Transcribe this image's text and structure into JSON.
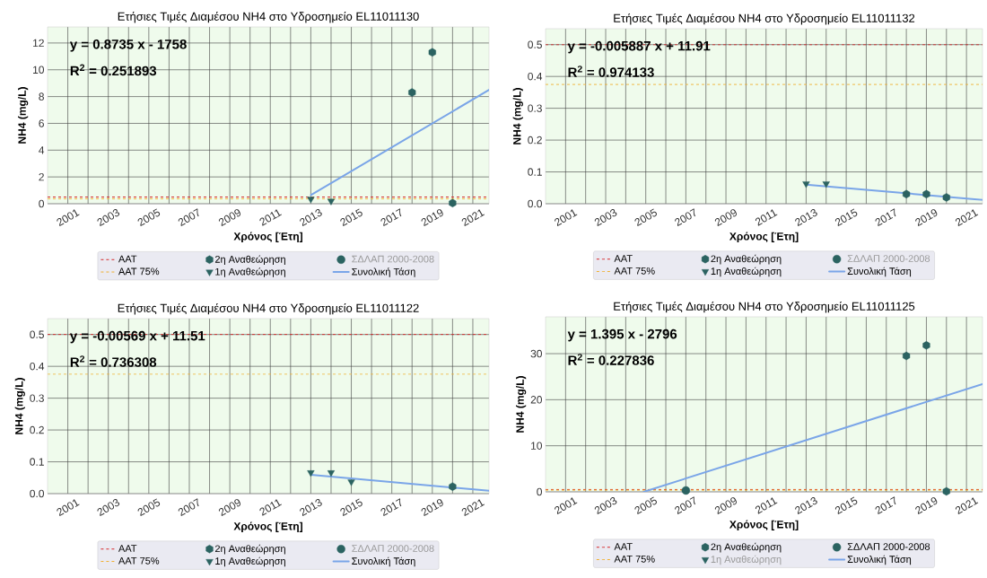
{
  "chart_data": [
    {
      "type": "scatter",
      "title": "Ετήσιες Τιμές Διαμέσου NH4 στο Υδροσημείο EL11011130",
      "xlabel": "Χρόνος [Έτη]",
      "ylabel": "NH4 (mg/L)",
      "xlim": [
        2000,
        2021.8
      ],
      "ylim": [
        0,
        13.2
      ],
      "xticks": [
        2001,
        {
          "value": 2002,
          "label": null
        },
        2003,
        {
          "value": 2004,
          "label": null
        },
        2005,
        {
          "value": 2006,
          "label": null
        },
        2007,
        {
          "value": 2008,
          "label": null
        },
        2009,
        {
          "value": 2010,
          "label": null
        },
        2011,
        {
          "value": 2012,
          "label": null
        },
        2013,
        {
          "value": 2014,
          "label": null
        },
        2015,
        {
          "value": 2016,
          "label": null
        },
        2017,
        {
          "value": 2018,
          "label": null
        },
        2019,
        {
          "value": 2020,
          "label": null
        },
        2021
      ],
      "yticks": [
        0,
        2,
        4,
        6,
        8,
        10,
        12
      ],
      "grid": true,
      "legend": "bottom",
      "annotations": [
        "y =  0.8735 x - 1758",
        "R$^{2}$ = 0.251893"
      ],
      "ref_lines": [
        {
          "axis": "y",
          "value": 0.5,
          "label": "AAT",
          "color": "#d62728",
          "line_style": "dashed"
        },
        {
          "axis": "y",
          "value": 0.375,
          "label": "AAT 75%",
          "color": "#f0b030",
          "line_style": "dashed"
        }
      ],
      "series": [
        {
          "name": "2η Αναθεώρηση",
          "color": "#2b6361",
          "x": [
            2018,
            2019,
            2020
          ],
          "values": [
            8.3,
            11.3,
            0.05
          ]
        },
        {
          "name": "1η Αναθεώρηση",
          "marker": "triangle",
          "color": "#2b6361",
          "x": [
            2013,
            2014
          ],
          "values": [
            0.35,
            0.2
          ]
        },
        {
          "name": "ΣΔΛΑΠ 2000-2008",
          "marker": "circle",
          "color": "#2b6361"
        },
        {
          "name": "Συνολική Τάση",
          "type": "line",
          "marker": "none",
          "color": "#7aa5e8",
          "x": [
            2013,
            2021.8
          ],
          "values": [
            0.64,
            8.5
          ]
        }
      ]
    },
    {
      "type": "scatter",
      "title": "Ετήσιες Τιμές Διαμέσου NH4 στο Υδροσημείο EL11011132",
      "xlabel": "Χρόνος [Έτη]",
      "ylabel": "NH4 (mg/L)",
      "xlim": [
        2000,
        2021.8
      ],
      "ylim": [
        0,
        0.55
      ],
      "xticks": [
        2001,
        {
          "value": 2002,
          "label": null
        },
        2003,
        {
          "value": 2004,
          "label": null
        },
        2005,
        {
          "value": 2006,
          "label": null
        },
        2007,
        {
          "value": 2008,
          "label": null
        },
        2009,
        {
          "value": 2010,
          "label": null
        },
        2011,
        {
          "value": 2012,
          "label": null
        },
        2013,
        {
          "value": 2014,
          "label": null
        },
        2015,
        {
          "value": 2016,
          "label": null
        },
        2017,
        {
          "value": 2018,
          "label": null
        },
        2019,
        {
          "value": 2020,
          "label": null
        },
        2021
      ],
      "yticks": [
        {
          "value": 0,
          "label": "0.0"
        },
        0.1,
        0.2,
        0.3,
        0.4,
        0.5
      ],
      "grid": true,
      "legend": "bottom",
      "annotations": [
        "y =  -0.005887 x + 11.91",
        "R$^{2}$ = 0.974133"
      ],
      "ref_lines": [
        {
          "axis": "y",
          "value": 0.5,
          "label": "AAT",
          "color": "#d62728",
          "line_style": "dashed"
        },
        {
          "axis": "y",
          "value": 0.375,
          "label": "AAT 75%",
          "color": "#f0b030",
          "line_style": "dashed"
        }
      ],
      "series": [
        {
          "name": "2η Αναθεώρηση",
          "color": "#2b6361",
          "x": [
            2018,
            2019,
            2020
          ],
          "values": [
            0.03,
            0.03,
            0.02
          ]
        },
        {
          "name": "1η Αναθεώρηση",
          "marker": "triangle",
          "color": "#2b6361",
          "x": [
            2013,
            2014
          ],
          "values": [
            0.063,
            0.063
          ]
        },
        {
          "name": "ΣΔΛΑΠ 2000-2008",
          "marker": "circle",
          "color": "#2b6361"
        },
        {
          "name": "Συνολική Τάση",
          "type": "line",
          "marker": "none",
          "color": "#7aa5e8",
          "x": [
            2013,
            2021.8
          ],
          "values": [
            0.06,
            0.012
          ]
        }
      ]
    },
    {
      "type": "scatter",
      "title": "Ετήσιες Τιμές Διαμέσου NH4 στο Υδροσημείο EL11011122",
      "xlabel": "Χρόνος [Έτη]",
      "ylabel": "NH4 (mg/L)",
      "xlim": [
        2000,
        2021.8
      ],
      "ylim": [
        0,
        0.55
      ],
      "xticks": [
        2001,
        {
          "value": 2002,
          "label": null
        },
        2003,
        {
          "value": 2004,
          "label": null
        },
        2005,
        {
          "value": 2006,
          "label": null
        },
        2007,
        {
          "value": 2008,
          "label": null
        },
        2009,
        {
          "value": 2010,
          "label": null
        },
        2011,
        {
          "value": 2012,
          "label": null
        },
        2013,
        {
          "value": 2014,
          "label": null
        },
        2015,
        {
          "value": 2016,
          "label": null
        },
        2017,
        {
          "value": 2018,
          "label": null
        },
        2019,
        {
          "value": 2020,
          "label": null
        },
        2021
      ],
      "yticks": [
        {
          "value": 0,
          "label": "0.0"
        },
        0.1,
        0.2,
        0.3,
        0.4,
        0.5
      ],
      "grid": true,
      "legend": "bottom",
      "annotations": [
        "y =  -0.00569 x + 11.51",
        "R$^{2}$ = 0.736308"
      ],
      "ref_lines": [
        {
          "axis": "y",
          "value": 0.5,
          "label": "AAT",
          "color": "#d62728",
          "line_style": "dashed"
        },
        {
          "axis": "y",
          "value": 0.375,
          "label": "AAT 75%",
          "color": "#f0b030",
          "line_style": "dashed"
        }
      ],
      "series": [
        {
          "name": "2η Αναθεώρηση",
          "color": "#2b6361",
          "x": [
            2020
          ],
          "values": [
            0.022
          ]
        },
        {
          "name": "1η Αναθεώρηση",
          "marker": "triangle",
          "color": "#2b6361",
          "x": [
            2013,
            2014,
            2015
          ],
          "values": [
            0.066,
            0.066,
            0.037
          ]
        },
        {
          "name": "ΣΔΛΑΠ 2000-2008",
          "marker": "circle",
          "color": "#2b6361"
        },
        {
          "name": "Συνολική Τάση",
          "type": "line",
          "marker": "none",
          "color": "#7aa5e8",
          "x": [
            2013,
            2021.8
          ],
          "values": [
            0.059,
            0.009
          ]
        }
      ]
    },
    {
      "type": "scatter",
      "title": "Ετήσιες Τιμές Διαμέσου NH4 στο Υδροσημείο EL11011125",
      "xlabel": "Χρόνος [Έτη]",
      "ylabel": "NH4 (mg/L)",
      "xlim": [
        2000,
        2021.8
      ],
      "ylim": [
        0,
        38
      ],
      "xticks": [
        2001,
        {
          "value": 2002,
          "label": null
        },
        2003,
        {
          "value": 2004,
          "label": null
        },
        2005,
        {
          "value": 2006,
          "label": null
        },
        2007,
        {
          "value": 2008,
          "label": null
        },
        2009,
        {
          "value": 2010,
          "label": null
        },
        2011,
        {
          "value": 2012,
          "label": null
        },
        2013,
        {
          "value": 2014,
          "label": null
        },
        2015,
        {
          "value": 2016,
          "label": null
        },
        2017,
        {
          "value": 2018,
          "label": null
        },
        2019,
        {
          "value": 2020,
          "label": null
        },
        2021
      ],
      "yticks": [
        0,
        10,
        20,
        30
      ],
      "grid": true,
      "legend": "bottom",
      "annotations": [
        "y =  1.395 x - 2796",
        "R$^{2}$ = 0.227836"
      ],
      "ref_lines": [
        {
          "axis": "y",
          "value": 0.5,
          "label": "AAT",
          "color": "#d62728",
          "line_style": "dashed"
        },
        {
          "axis": "y",
          "value": 0.375,
          "label": "AAT 75%",
          "color": "#f0b030",
          "line_style": "dashed"
        }
      ],
      "series": [
        {
          "name": "2η Αναθεώρηση",
          "color": "#2b6361",
          "x": [
            2018,
            2019,
            2020
          ],
          "values": [
            29.5,
            31.8,
            0.1
          ]
        },
        {
          "name": "1η Αναθεώρηση",
          "marker": "triangle",
          "color": "#2b6361"
        },
        {
          "name": "ΣΔΛΑΠ 2000-2008",
          "marker": "circle",
          "color": "#2b6361",
          "x": [
            2007
          ],
          "values": [
            0.3
          ]
        },
        {
          "name": "Συνολική Τάση",
          "type": "line",
          "marker": "none",
          "color": "#7aa5e8",
          "x": [
            2004.9,
            2021.8
          ],
          "values": [
            0,
            23.4
          ]
        }
      ]
    }
  ]
}
